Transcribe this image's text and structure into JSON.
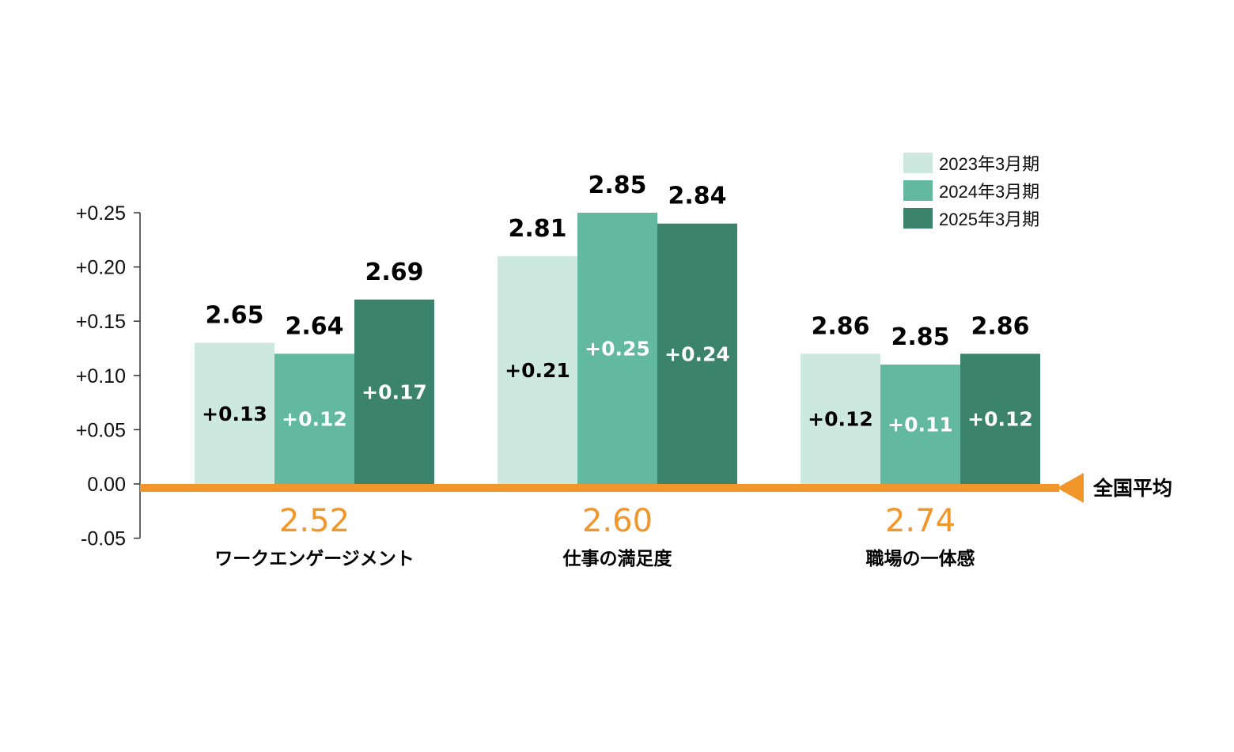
{
  "chart_data": {
    "type": "bar",
    "categories": [
      "ワークエンゲージメント",
      "仕事の満足度",
      "職場の一体感"
    ],
    "national_average": [
      2.52,
      2.6,
      2.74
    ],
    "baseline_label": "全国平均",
    "series": [
      {
        "name": "2023年3月期",
        "color": "#cde8df",
        "diff_color": "#000000",
        "values": [
          0.13,
          0.21,
          0.12
        ],
        "scores": [
          "2.65",
          "2.81",
          "2.86"
        ],
        "diff_labels": [
          "+0.13",
          "+0.21",
          "+0.12"
        ]
      },
      {
        "name": "2024年3月期",
        "color": "#63b99d",
        "diff_color": "#ffffff",
        "values": [
          0.12,
          0.25,
          0.11
        ],
        "scores": [
          "2.64",
          "2.85",
          "2.85"
        ],
        "diff_labels": [
          "+0.12",
          "+0.25",
          "+0.11"
        ]
      },
      {
        "name": "2025年3月期",
        "color": "#3b846b",
        "diff_color": "#ffffff",
        "values": [
          0.17,
          0.24,
          0.12
        ],
        "scores": [
          "2.69",
          "2.84",
          "2.86"
        ],
        "diff_labels": [
          "+0.17",
          "+0.24",
          "+0.12"
        ]
      }
    ],
    "average_labels": [
      "2.52",
      "2.60",
      "2.74"
    ],
    "y_ticks": [
      "+0.25",
      "+0.20",
      "+0.15",
      "+0.10",
      "+0.05",
      "0.00",
      "-0.05"
    ],
    "y_tick_values": [
      0.25,
      0.2,
      0.15,
      0.1,
      0.05,
      0.0,
      -0.05
    ],
    "ylim": [
      -0.05,
      0.25
    ],
    "legend_position": "top-right",
    "grid": false,
    "baseline_color": "#f0962a"
  }
}
